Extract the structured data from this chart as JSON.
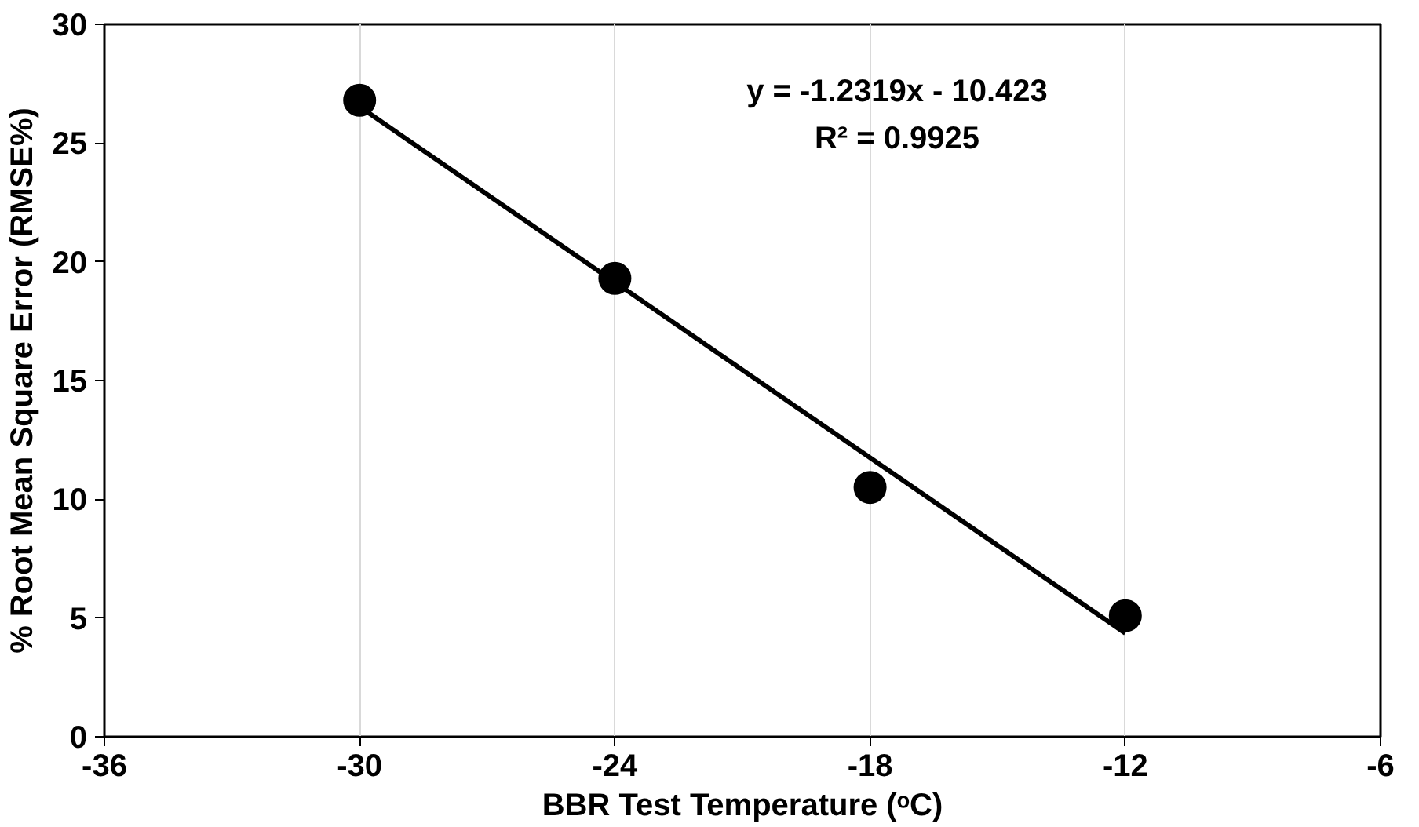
{
  "chart_data": {
    "type": "scatter",
    "xlabel": "BBR Test Temperature (ᵒC)",
    "ylabel": "% Root Mean Square Error (RMSE%)",
    "series": [
      {
        "color": "#000000",
        "marker": "circle",
        "x": [
          -30,
          -24,
          -18,
          -12
        ],
        "values": [
          26.8,
          19.3,
          10.5,
          5.1
        ]
      },
      {
        "type": "line",
        "color": "#000000",
        "x": [
          -30,
          -12
        ],
        "values": [
          26.53,
          4.36
        ]
      }
    ],
    "xlim": [
      -36,
      -6
    ],
    "xticks": [
      -36,
      -30,
      -24,
      -18,
      -12,
      -6
    ],
    "ylim": [
      0,
      30
    ],
    "yticks": [
      0,
      5,
      10,
      15,
      20,
      25,
      30
    ],
    "grid": "x",
    "annotations": [
      "y = -1.2319x - 10.423",
      "R² = 0.9925"
    ]
  }
}
